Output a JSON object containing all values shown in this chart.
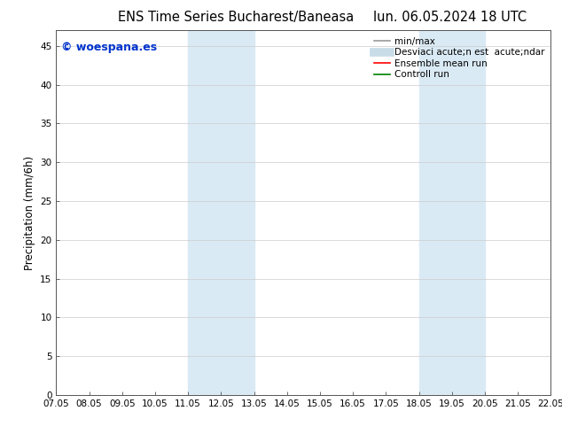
{
  "title_left": "ENS Time Series Bucharest/Baneasa",
  "title_right": "lun. 06.05.2024 18 UTC",
  "ylabel": "Precipitation (mm/6h)",
  "xlabel_ticks": [
    "07.05",
    "08.05",
    "09.05",
    "10.05",
    "11.05",
    "12.05",
    "13.05",
    "14.05",
    "15.05",
    "16.05",
    "17.05",
    "18.05",
    "19.05",
    "20.05",
    "21.05",
    "22.05"
  ],
  "xlim": [
    0,
    15
  ],
  "ylim": [
    0,
    47
  ],
  "yticks": [
    0,
    5,
    10,
    15,
    20,
    25,
    30,
    35,
    40,
    45
  ],
  "shaded_regions": [
    {
      "xmin": 4.0,
      "xmax": 5.0,
      "color": "#daeaf5"
    },
    {
      "xmin": 5.0,
      "xmax": 6.0,
      "color": "#daeaf5"
    },
    {
      "xmin": 11.0,
      "xmax": 12.0,
      "color": "#daeaf5"
    },
    {
      "xmin": 12.0,
      "xmax": 13.0,
      "color": "#daeaf5"
    }
  ],
  "watermark_text": "© woespana.es",
  "watermark_color": "#0033cc",
  "legend_entries": [
    {
      "label": "min/max",
      "color": "#999999",
      "lw": 1.2,
      "style": "solid"
    },
    {
      "label": "Desviaci acute;n est  acute;ndar",
      "color": "#c8dce8",
      "lw": 7,
      "style": "solid"
    },
    {
      "label": "Ensemble mean run",
      "color": "#ff0000",
      "lw": 1.2,
      "style": "solid"
    },
    {
      "label": "Controll run",
      "color": "#008000",
      "lw": 1.2,
      "style": "solid"
    }
  ],
  "background_color": "#ffffff",
  "plot_bg_color": "#ffffff",
  "grid_color": "#cccccc",
  "tick_label_fontsize": 7.5,
  "title_fontsize": 10.5,
  "ylabel_fontsize": 8.5,
  "legend_fontsize": 7.5
}
